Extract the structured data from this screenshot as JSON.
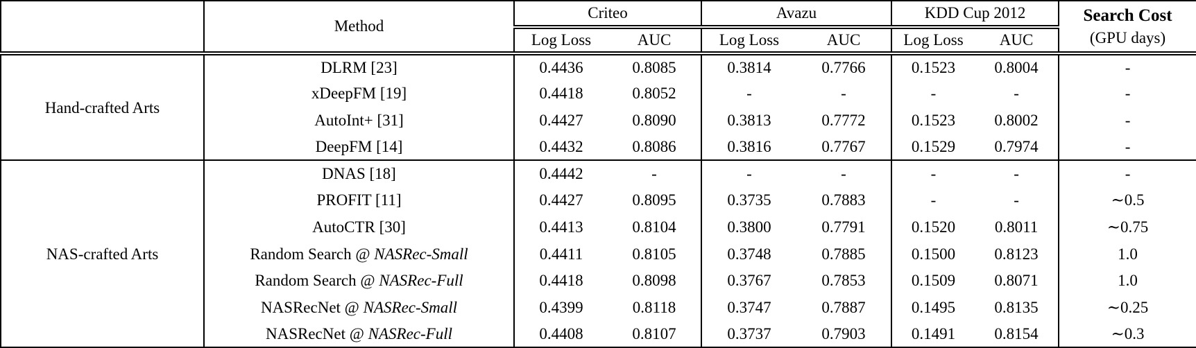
{
  "colors": {
    "text": "#000000",
    "background": "#ffffff",
    "border": "#000000"
  },
  "table": {
    "columns": {
      "corner": "",
      "method_label": "Method",
      "datasets": [
        {
          "label": "Criteo",
          "sub": [
            "Log Loss",
            "AUC"
          ]
        },
        {
          "label": "Avazu",
          "sub": [
            "Log Loss",
            "AUC"
          ]
        },
        {
          "label": "KDD Cup 2012",
          "sub": [
            "Log Loss",
            "AUC"
          ]
        }
      ],
      "search_cost": {
        "label": "Search Cost",
        "sub": "(GPU days)"
      }
    },
    "groups": [
      {
        "label": "Hand-crafted Arts",
        "rows": [
          {
            "method": "DLRM [23]",
            "method_italic": "",
            "values": [
              "0.4436",
              "0.8085",
              "0.3814",
              "0.7766",
              "0.1523",
              "0.8004",
              "-"
            ],
            "bold": []
          },
          {
            "method": "xDeepFM [19]",
            "method_italic": "",
            "values": [
              "0.4418",
              "0.8052",
              "-",
              "-",
              "-",
              "-",
              "-"
            ],
            "bold": []
          },
          {
            "method": "AutoInt+ [31]",
            "method_italic": "",
            "values": [
              "0.4427",
              "0.8090",
              "0.3813",
              "0.7772",
              "0.1523",
              "0.8002",
              "-"
            ],
            "bold": []
          },
          {
            "method": "DeepFM [14]",
            "method_italic": "",
            "values": [
              "0.4432",
              "0.8086",
              "0.3816",
              "0.7767",
              "0.1529",
              "0.7974",
              "-"
            ],
            "bold": []
          }
        ]
      },
      {
        "label": "NAS-crafted Arts",
        "rows": [
          {
            "method": "DNAS [18]",
            "method_italic": "",
            "values": [
              "0.4442",
              "-",
              "-",
              "-",
              "-",
              "-",
              "-"
            ],
            "bold": []
          },
          {
            "method": "PROFIT [11]",
            "method_italic": "",
            "values": [
              "0.4427",
              "0.8095",
              "0.3735",
              "0.7883",
              "-",
              "-",
              "∼0.5"
            ],
            "bold": [
              2
            ]
          },
          {
            "method": "AutoCTR [30]",
            "method_italic": "",
            "values": [
              "0.4413",
              "0.8104",
              "0.3800",
              "0.7791",
              "0.1520",
              "0.8011",
              "∼0.75"
            ],
            "bold": []
          },
          {
            "method": "Random Search @ ",
            "method_italic": "NASRec-Small",
            "values": [
              "0.4411",
              "0.8105",
              "0.3748",
              "0.7885",
              "0.1500",
              "0.8123",
              "1.0"
            ],
            "bold": []
          },
          {
            "method": "Random Search @ ",
            "method_italic": "NASRec-Full",
            "values": [
              "0.4418",
              "0.8098",
              "0.3767",
              "0.7853",
              "0.1509",
              "0.8071",
              "1.0"
            ],
            "bold": []
          },
          {
            "method": "NASRecNet @ ",
            "method_italic": "NASRec-Small",
            "values": [
              "0.4399",
              "0.8118",
              "0.3747",
              "0.7887",
              "0.1495",
              "0.8135",
              "∼0.25"
            ],
            "bold": [
              0,
              1,
              4,
              5
            ]
          },
          {
            "method": "NASRecNet @ ",
            "method_italic": "NASRec-Full",
            "values": [
              "0.4408",
              "0.8107",
              "0.3737",
              "0.7903",
              "0.1491",
              "0.8154",
              "∼0.3"
            ],
            "bold": [
              0,
              1,
              2,
              3,
              4,
              5
            ]
          }
        ]
      }
    ]
  }
}
